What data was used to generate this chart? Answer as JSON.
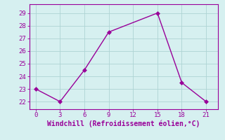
{
  "x": [
    0,
    3,
    6,
    9,
    15,
    18,
    21
  ],
  "y": [
    23,
    22,
    24.5,
    27.5,
    29,
    23.5,
    22
  ],
  "color": "#990099",
  "marker": "D",
  "markersize": 3,
  "linewidth": 1.0,
  "xlabel": "Windchill (Refroidissement éolien,°C)",
  "xlabel_fontsize": 7,
  "xlim": [
    -0.8,
    22.5
  ],
  "ylim": [
    21.4,
    29.7
  ],
  "xticks": [
    0,
    3,
    6,
    9,
    12,
    15,
    18,
    21
  ],
  "yticks": [
    22,
    23,
    24,
    25,
    26,
    27,
    28,
    29
  ],
  "tick_fontsize": 6.5,
  "bg_color": "#d6f0f0",
  "grid_color": "#aed4d4",
  "fig_bg": "#d6f0f0",
  "spine_color": "#990099"
}
